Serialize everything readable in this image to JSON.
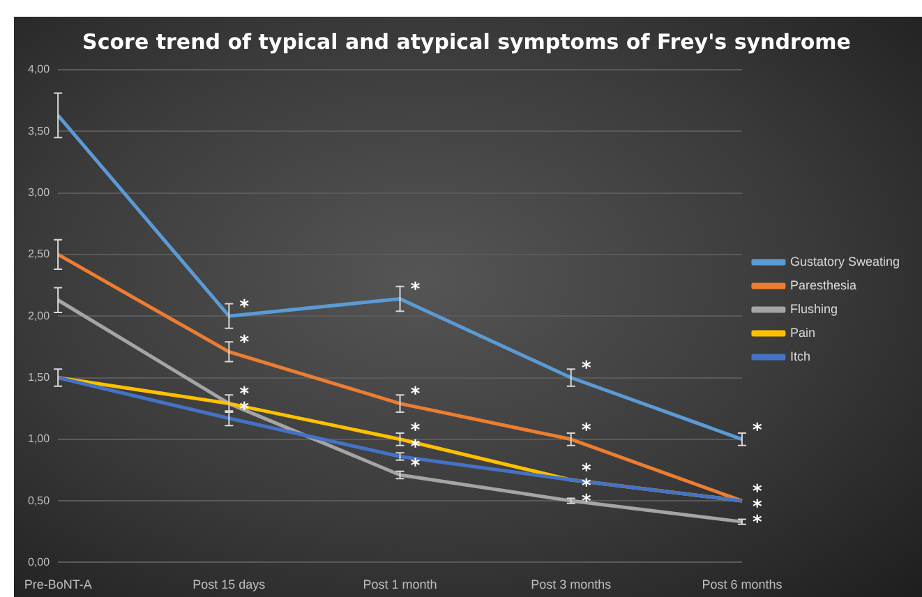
{
  "chart_data": {
    "type": "line",
    "title": "Score trend of typical and atypical symptoms of Frey's syndrome",
    "categories": [
      "Pre-BoNT-A",
      "Post 15 days",
      "Post 1 month",
      "Post 3 months",
      "Post 6 months"
    ],
    "series": [
      {
        "name": "Gustatory Sweating",
        "color": "#5b9bd5",
        "values": [
          3.63,
          2.0,
          2.14,
          1.5,
          1.0
        ],
        "errors": [
          0.18,
          0.1,
          0.1,
          0.07,
          0.05
        ],
        "value_labels": [
          null,
          "*",
          "*",
          "*",
          "*"
        ]
      },
      {
        "name": "Paresthesia",
        "color": "#ed7d31",
        "values": [
          2.5,
          1.71,
          1.29,
          1.0,
          0.5
        ],
        "errors": [
          0.12,
          0.08,
          0.07,
          0.05,
          null
        ],
        "value_labels": [
          null,
          "*",
          "*",
          "*",
          "*"
        ]
      },
      {
        "name": "Flushing",
        "color": "#a5a5a5",
        "values": [
          2.13,
          1.29,
          0.71,
          0.5,
          0.33
        ],
        "errors": [
          0.1,
          null,
          0.03,
          0.02,
          0.02
        ],
        "value_labels": [
          null,
          null,
          "*",
          "*",
          "*"
        ]
      },
      {
        "name": "Pain",
        "color": "#ffc000",
        "values": [
          1.5,
          1.29,
          1.0,
          0.67,
          0.5
        ],
        "errors": [
          0.07,
          0.07,
          0.05,
          null,
          null
        ],
        "value_labels": [
          null,
          "*",
          "*",
          "*",
          "*"
        ]
      },
      {
        "name": "Itch",
        "color": "#4472c4",
        "values": [
          1.5,
          1.17,
          0.86,
          0.67,
          0.5
        ],
        "errors": [
          null,
          0.06,
          0.03,
          null,
          null
        ],
        "value_labels": [
          null,
          "*",
          "*",
          "*",
          null
        ]
      }
    ],
    "ylim": [
      0,
      4
    ],
    "yticks": [
      {
        "value": 0,
        "label": "0,00"
      },
      {
        "value": 0.5,
        "label": "0,50"
      },
      {
        "value": 1,
        "label": "1,00"
      },
      {
        "value": 1.5,
        "label": "1,50"
      },
      {
        "value": 2,
        "label": "2,00"
      },
      {
        "value": 2.5,
        "label": "2,50"
      },
      {
        "value": 3,
        "label": "3,00"
      },
      {
        "value": 3.5,
        "label": "3,50"
      },
      {
        "value": 4,
        "label": "4,00"
      }
    ],
    "grid": "y",
    "legend": "right",
    "marker": "none",
    "line_style": "solid"
  }
}
